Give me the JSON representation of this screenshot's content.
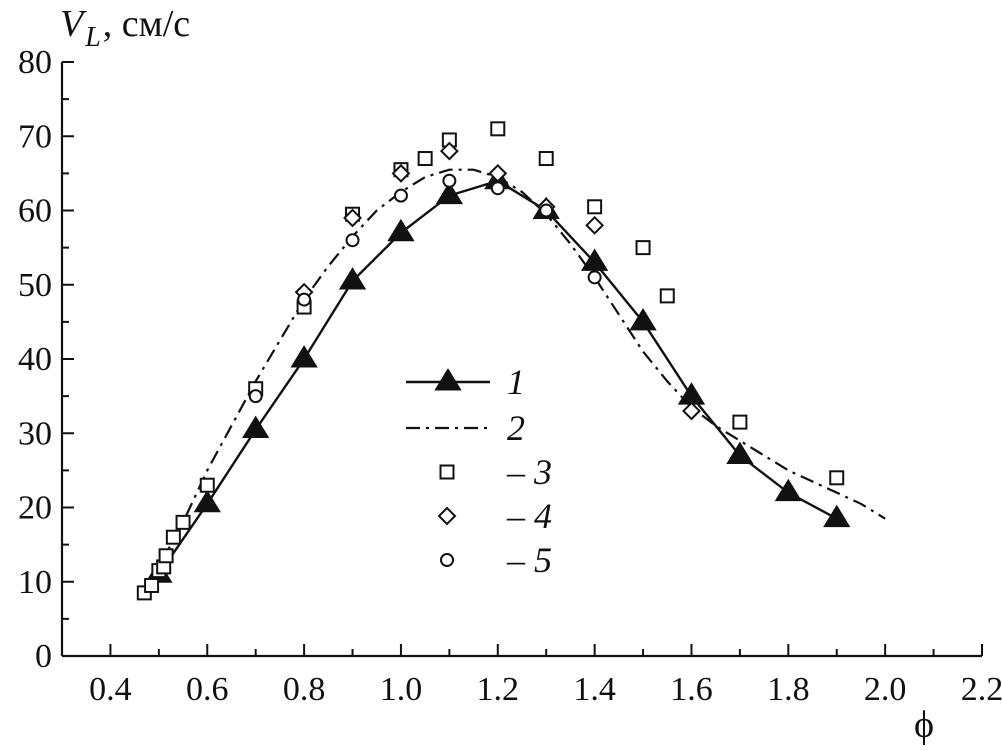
{
  "chart_data": {
    "type": "line",
    "title": "",
    "ylabel": "V_L, см/с",
    "ylabel_parts": {
      "main": "V",
      "sub": "L",
      "rest": ", см/с"
    },
    "xlabel": "ϕ",
    "xlim": [
      0.3,
      2.2
    ],
    "ylim": [
      0,
      80
    ],
    "x_ticks": [
      0.4,
      0.6,
      0.8,
      1.0,
      1.2,
      1.4,
      1.6,
      1.8,
      2.0,
      2.2
    ],
    "x_tick_labels": [
      "0.4",
      "0.6",
      "0.8",
      "1.0",
      "1.2",
      "1.4",
      "1.6",
      "1.8",
      "2.0",
      "2.2"
    ],
    "y_ticks": [
      0,
      10,
      20,
      30,
      40,
      50,
      60,
      70,
      80
    ],
    "y_tick_labels": [
      "0",
      "10",
      "20",
      "30",
      "40",
      "50",
      "60",
      "70",
      "80"
    ],
    "grid": false,
    "legend_position": "center",
    "series": [
      {
        "name": "1",
        "style": "solid-line-filled-triangle",
        "x": [
          0.5,
          0.6,
          0.7,
          0.8,
          0.9,
          1.0,
          1.1,
          1.2,
          1.3,
          1.4,
          1.5,
          1.6,
          1.7,
          1.8,
          1.9
        ],
        "y": [
          11,
          20.5,
          30.5,
          40,
          50.5,
          57,
          62,
          64,
          60,
          53,
          45,
          35,
          27,
          22,
          18.5
        ]
      },
      {
        "name": "2",
        "style": "dash-dot-line",
        "x": [
          0.5,
          0.55,
          0.6,
          0.65,
          0.7,
          0.75,
          0.8,
          0.85,
          0.9,
          0.95,
          1.0,
          1.05,
          1.1,
          1.15,
          1.2,
          1.25,
          1.3,
          1.35,
          1.4,
          1.45,
          1.5,
          1.55,
          1.6,
          1.65,
          1.7,
          1.75,
          1.8,
          1.85,
          1.9,
          1.95,
          2.0
        ],
        "y": [
          12,
          18,
          25,
          31,
          37,
          42.5,
          48,
          52.5,
          56.5,
          60,
          62.5,
          64.5,
          65.5,
          65.5,
          64.5,
          62.5,
          59.5,
          55.5,
          51,
          46,
          41,
          37,
          33.5,
          31,
          29,
          27,
          25,
          23.5,
          22,
          20.5,
          18.5
        ]
      },
      {
        "name": "3",
        "style": "open-square",
        "x": [
          0.47,
          0.485,
          0.5,
          0.51,
          0.515,
          0.53,
          0.55,
          0.6,
          0.7,
          0.8,
          0.9,
          1.0,
          1.05,
          1.1,
          1.2,
          1.3,
          1.4,
          1.5,
          1.55,
          1.7,
          1.9
        ],
        "y": [
          8.5,
          9.5,
          11.5,
          12,
          13.5,
          16,
          18,
          23,
          36,
          47,
          59.5,
          65.5,
          67,
          69.5,
          71,
          67,
          60.5,
          55,
          48.5,
          31.5,
          24
        ]
      },
      {
        "name": "4",
        "style": "open-diamond",
        "x": [
          0.8,
          0.9,
          1.0,
          1.1,
          1.2,
          1.3,
          1.4,
          1.6
        ],
        "y": [
          49,
          59,
          65,
          68,
          65,
          60.5,
          58,
          33
        ]
      },
      {
        "name": "5",
        "style": "open-circle",
        "x": [
          0.7,
          0.8,
          0.9,
          1.0,
          1.1,
          1.2,
          1.3,
          1.4
        ],
        "y": [
          35,
          48,
          56,
          62,
          64,
          63,
          60,
          51
        ]
      }
    ]
  },
  "legend": {
    "items": [
      {
        "label": "1",
        "dash_prefix": ""
      },
      {
        "label": "2",
        "dash_prefix": ""
      },
      {
        "label": "3",
        "dash_prefix": "– "
      },
      {
        "label": "4",
        "dash_prefix": "– "
      },
      {
        "label": "5",
        "dash_prefix": "– "
      }
    ]
  }
}
